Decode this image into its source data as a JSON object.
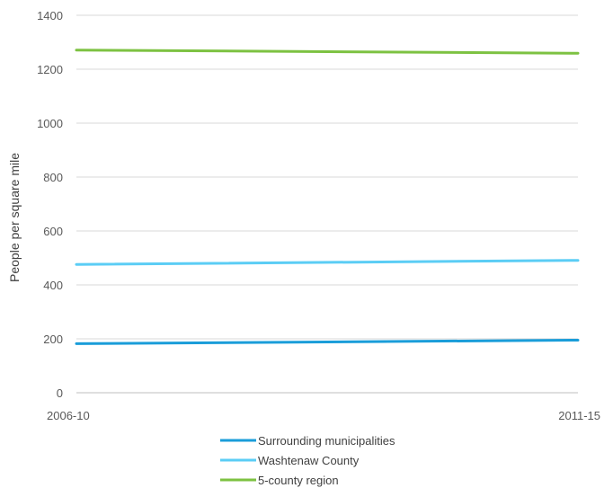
{
  "chart_data": {
    "type": "line",
    "x": [
      "2006-10",
      "2011-15"
    ],
    "ylabel": "People per square mile",
    "ylim": [
      0,
      1400
    ],
    "yticks": [
      0,
      200,
      400,
      600,
      800,
      1000,
      1200,
      1400
    ],
    "grid": true,
    "legend_position": "bottom",
    "series": [
      {
        "name": "Surrounding municipalities",
        "values": [
          182,
          195
        ],
        "color": "#1a9dd9"
      },
      {
        "name": "Washtenaw County",
        "values": [
          476,
          491
        ],
        "color": "#5bcdf5"
      },
      {
        "name": "5-county region",
        "values": [
          1271,
          1259
        ],
        "color": "#7dc242"
      }
    ]
  }
}
